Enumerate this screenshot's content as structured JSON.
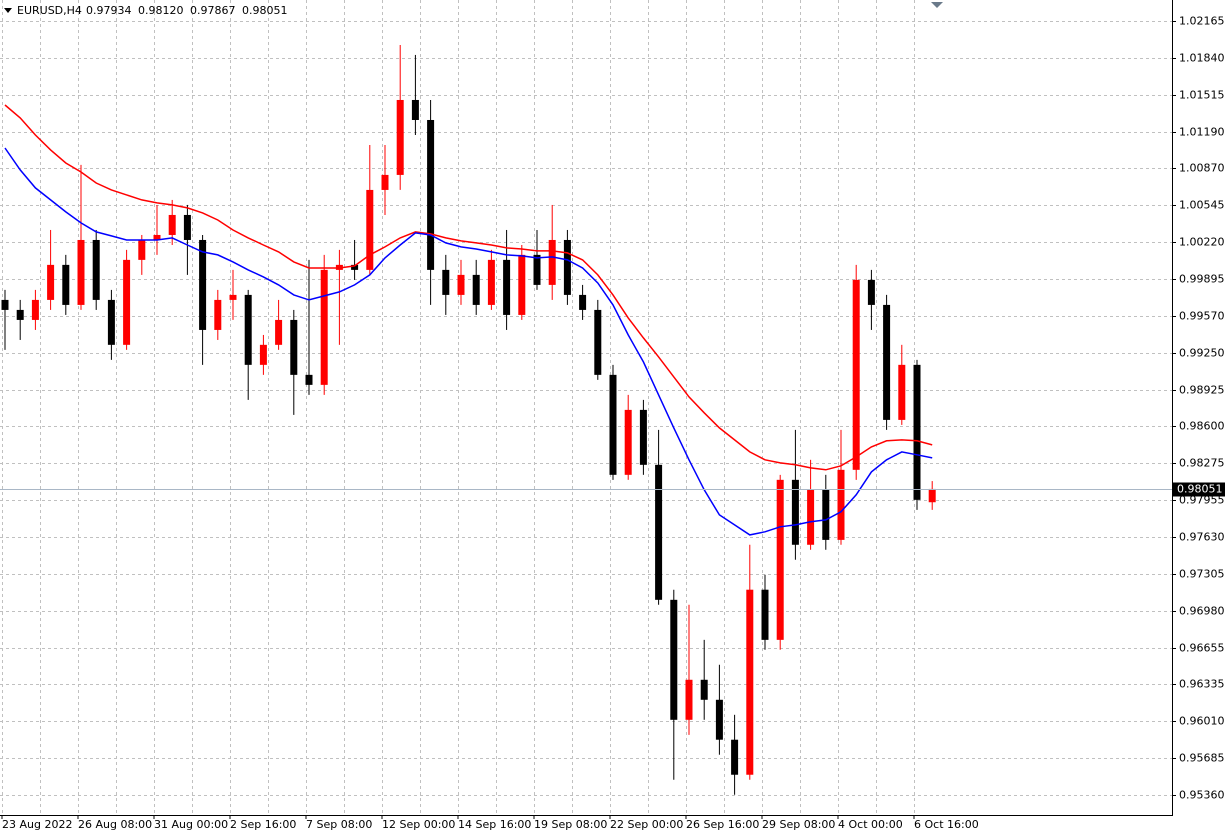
{
  "chart_data": {
    "type": "candlestick",
    "title": "EURUSD,H4",
    "title_values": [
      "0.97934",
      "0.98120",
      "0.97867",
      "0.98051"
    ],
    "categories": [
      "23 Aug 2022",
      null,
      null,
      null,
      null,
      "26 Aug 08:00",
      null,
      null,
      null,
      null,
      "31 Aug 00:00",
      null,
      null,
      null,
      null,
      "2 Sep 16:00",
      null,
      null,
      null,
      null,
      "7 Sep 08:00",
      null,
      null,
      null,
      null,
      "12 Sep 00:00",
      null,
      null,
      null,
      null,
      "14 Sep 16:00",
      null,
      null,
      null,
      null,
      "19 Sep 08:00",
      null,
      null,
      null,
      null,
      "22 Sep 00:00",
      null,
      null,
      null,
      null,
      "26 Sep 16:00",
      null,
      null,
      null,
      null,
      "29 Sep 08:00",
      null,
      null,
      null,
      null,
      "4 Oct 00:00",
      null,
      null,
      null,
      null,
      "6 Oct 16:00",
      null
    ],
    "open": [
      0.99713,
      0.99625,
      0.99537,
      0.99713,
      1.00021,
      0.99669,
      1.0024,
      0.99713,
      0.99318,
      1.00065,
      1.0024,
      1.00284,
      1.0046,
      1.0024,
      0.99449,
      0.99713,
      0.99757,
      0.99142,
      0.99318,
      0.99537,
      0.99054,
      0.98966,
      0.99977,
      1.00021,
      0.99977,
      1.0068,
      1.00812,
      1.01471,
      1.01295,
      0.99977,
      0.99757,
      0.99933,
      0.99669,
      1.00065,
      0.99581,
      1.00109,
      0.99845,
      1.0024,
      0.99757,
      0.99625,
      0.99054,
      0.98175,
      0.98746,
      0.98263,
      0.97076,
      0.96021,
      0.96373,
      0.96197,
      0.95846,
      0.95538,
      0.97165,
      0.96724,
      0.98131,
      0.9756,
      0.98043,
      0.97603,
      0.98219,
      0.99889,
      0.99669,
      0.98658,
      0.99142,
      0.97934
    ],
    "high": [
      0.99801,
      0.99713,
      0.99801,
      1.00328,
      1.00109,
      1.009,
      1.00328,
      0.99801,
      1.00153,
      1.00284,
      1.00548,
      1.00592,
      1.00548,
      1.00284,
      0.99801,
      0.99977,
      0.99801,
      0.99405,
      0.99713,
      0.99625,
      1.00065,
      1.00109,
      1.00153,
      1.0024,
      1.01075,
      1.01075,
      1.01954,
      1.01867,
      1.01471,
      1.00109,
      1.00065,
      1.00065,
      1.00153,
      1.00328,
      1.00196,
      1.00328,
      1.00548,
      1.00328,
      0.99845,
      0.99713,
      0.99142,
      0.98878,
      0.98834,
      0.9857,
      0.97165,
      0.97033,
      0.96724,
      0.96505,
      0.96065,
      0.9756,
      0.97296,
      0.98175,
      0.9857,
      0.98307,
      0.98175,
      0.9857,
      1.00021,
      0.99977,
      0.99757,
      0.99318,
      0.99186,
      0.9812
    ],
    "low": [
      0.99274,
      0.99361,
      0.99449,
      0.99625,
      0.99581,
      0.99625,
      0.99625,
      0.99186,
      0.99274,
      0.99933,
      1.00109,
      1.00196,
      0.99933,
      0.99142,
      0.99361,
      0.99537,
      0.98834,
      0.99054,
      0.99274,
      0.98702,
      0.98878,
      0.98878,
      0.99318,
      0.99889,
      0.99933,
      1.0046,
      1.0068,
      1.01163,
      0.99669,
      0.99581,
      0.99669,
      0.99581,
      0.99625,
      0.99449,
      0.99537,
      0.99801,
      0.99713,
      0.99669,
      0.99537,
      0.9901,
      0.98131,
      0.98131,
      0.98175,
      0.97033,
      0.95494,
      0.95889,
      0.96021,
      0.95714,
      0.95362,
      0.95494,
      0.96637,
      0.96637,
      0.97428,
      0.97516,
      0.97516,
      0.9756,
      0.98131,
      0.99449,
      0.9857,
      0.98614,
      0.97867,
      0.97867
    ],
    "close": [
      0.99625,
      0.99537,
      0.99713,
      1.00021,
      0.99669,
      1.0024,
      0.99713,
      0.99318,
      1.00065,
      1.0024,
      1.00284,
      1.0046,
      1.0024,
      0.99449,
      0.99713,
      0.99757,
      0.99142,
      0.99318,
      0.99537,
      0.99054,
      0.98966,
      0.99977,
      1.00021,
      0.99977,
      1.0068,
      1.00812,
      1.01471,
      1.01295,
      0.99977,
      0.99757,
      0.99933,
      0.99669,
      1.00065,
      0.99581,
      1.00109,
      0.99845,
      1.0024,
      0.99757,
      0.99625,
      0.99054,
      0.98175,
      0.98746,
      0.98263,
      0.97076,
      0.96021,
      0.96373,
      0.96197,
      0.95846,
      0.95538,
      0.97165,
      0.96724,
      0.98131,
      0.9756,
      0.98043,
      0.97603,
      0.98219,
      0.99889,
      0.99669,
      0.98658,
      0.99142,
      0.97955,
      0.98051
    ],
    "up_color": "#ff0000",
    "down_color": "#000000",
    "lines": [
      {
        "color": "#ff0000",
        "values": [
          1.01427,
          1.01313,
          1.01163,
          1.01032,
          1.00917,
          1.00838,
          1.00741,
          1.0068,
          1.00636,
          1.00592,
          1.00566,
          1.00548,
          1.00522,
          1.00478,
          1.00416,
          1.00328,
          1.00258,
          1.00196,
          1.00135,
          1.00047,
          0.99994,
          0.99994,
          0.99994,
          1.00012,
          1.00109,
          1.00179,
          1.00258,
          1.00311,
          1.00293,
          1.00258,
          1.00232,
          1.00214,
          1.00196,
          1.0017,
          1.00161,
          1.00144,
          1.00144,
          1.00126,
          1.00065,
          0.99933,
          0.99757,
          0.99555,
          0.99379,
          0.99212,
          0.99036,
          0.9886,
          0.9872,
          0.98588,
          0.98482,
          0.98377,
          0.98307,
          0.9828,
          0.98263,
          0.98236,
          0.98219,
          0.98254,
          0.98333,
          0.98421,
          0.98474,
          0.98482,
          0.98474,
          0.98438
        ]
      },
      {
        "color": "#0000ff",
        "values": [
          1.01049,
          1.00856,
          1.00698,
          1.00592,
          1.00487,
          1.0039,
          1.00311,
          1.00276,
          1.0024,
          1.0024,
          1.0024,
          1.00258,
          1.00196,
          1.00135,
          1.00109,
          1.00047,
          0.99977,
          0.99915,
          0.99845,
          0.99757,
          0.99713,
          0.99748,
          0.99783,
          0.99845,
          0.99933,
          1.00082,
          1.00196,
          1.00302,
          1.00284,
          1.00214,
          1.00179,
          1.00161,
          1.00135,
          1.00109,
          1.001,
          1.00082,
          1.00091,
          1.00065,
          0.99994,
          0.99862,
          0.99669,
          0.99405,
          0.99168,
          0.98878,
          0.98588,
          0.98307,
          0.98043,
          0.97823,
          0.97735,
          0.97647,
          0.97674,
          0.97718,
          0.97735,
          0.97762,
          0.97779,
          0.9785,
          0.97999,
          0.98201,
          0.98307,
          0.98377,
          0.98351,
          0.98324
        ]
      }
    ],
    "ylim": [
      0.95184,
      1.0235
    ],
    "yticks": [
      1.02165,
      {
        "value": 1.0184,
        "label": "1.01840"
      },
      1.01515,
      {
        "value": 1.0119,
        "label": "1.01190"
      },
      {
        "value": 1.0087,
        "label": "1.00870"
      },
      1.00545,
      {
        "value": 1.0022,
        "label": "1.00220"
      },
      0.99895,
      {
        "value": 0.9957,
        "label": "0.99570"
      },
      {
        "value": 0.9925,
        "label": "0.99250"
      },
      0.98925,
      {
        "value": 0.986,
        "label": "0.98600"
      },
      0.98275,
      0.97955,
      {
        "value": 0.9763,
        "label": "0.97630"
      },
      0.97305,
      {
        "value": 0.9698,
        "label": "0.96980"
      },
      0.96655,
      0.96335,
      {
        "value": 0.9601,
        "label": "0.96010"
      },
      0.95685,
      {
        "value": 0.9536,
        "label": "0.95360"
      }
    ],
    "grid": true
  }
}
